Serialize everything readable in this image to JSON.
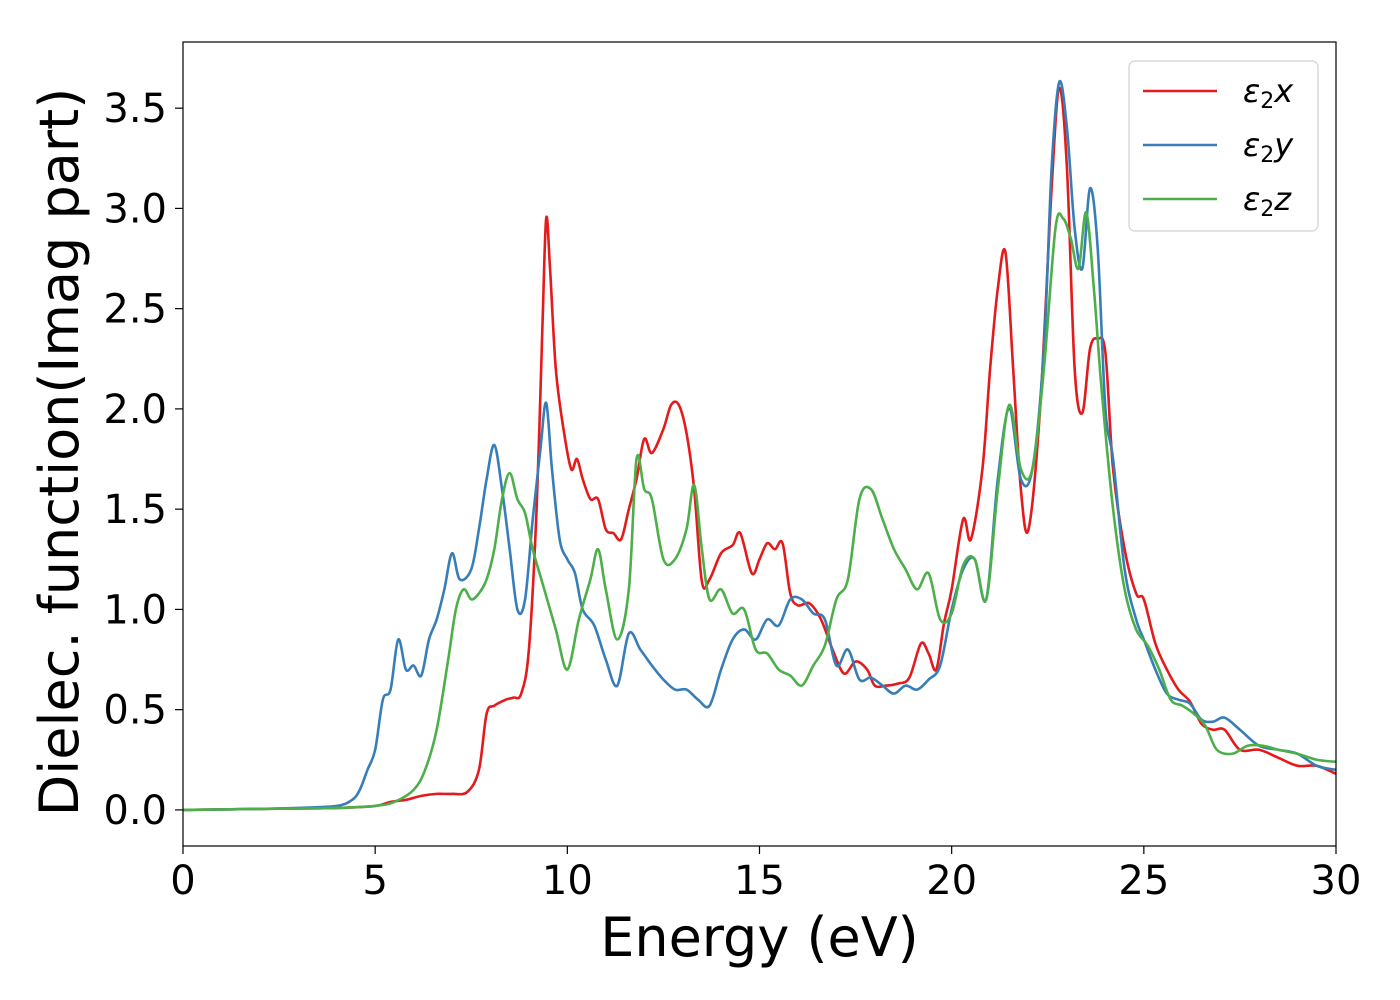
{
  "chart_data": {
    "type": "line",
    "title": "",
    "xlabel": "Energy (eV)",
    "ylabel": "Dielec. function(Imag part)",
    "xlim": [
      0,
      30
    ],
    "ylim": [
      -0.18,
      3.83
    ],
    "xticks": [
      0,
      5,
      10,
      15,
      20,
      25,
      30
    ],
    "xtick_labels": [
      "0",
      "5",
      "10",
      "15",
      "20",
      "25",
      "30"
    ],
    "yticks": [
      0.0,
      0.5,
      1.0,
      1.5,
      2.0,
      2.5,
      3.0,
      3.5
    ],
    "ytick_labels": [
      "0.0",
      "0.5",
      "1.0",
      "1.5",
      "2.0",
      "2.5",
      "3.0",
      "3.5"
    ],
    "grid": false,
    "legend_position": "top-right",
    "series": [
      {
        "name": "ε2x",
        "label_main": "ε",
        "label_sub": "2",
        "label_tail": "x",
        "color": "#e41a1c",
        "points": [
          [
            0,
            0
          ],
          [
            2,
            0.005
          ],
          [
            4,
            0.01
          ],
          [
            5,
            0.02
          ],
          [
            5.4,
            0.04
          ],
          [
            5.8,
            0.05
          ],
          [
            6.2,
            0.07
          ],
          [
            6.6,
            0.08
          ],
          [
            7,
            0.08
          ],
          [
            7.4,
            0.09
          ],
          [
            7.7,
            0.2
          ],
          [
            7.9,
            0.48
          ],
          [
            8.1,
            0.52
          ],
          [
            8.4,
            0.55
          ],
          [
            8.6,
            0.56
          ],
          [
            8.8,
            0.58
          ],
          [
            9.0,
            0.8
          ],
          [
            9.2,
            1.5
          ],
          [
            9.35,
            2.4
          ],
          [
            9.45,
            2.95
          ],
          [
            9.55,
            2.7
          ],
          [
            9.7,
            2.2
          ],
          [
            9.9,
            1.9
          ],
          [
            10.1,
            1.7
          ],
          [
            10.25,
            1.75
          ],
          [
            10.4,
            1.65
          ],
          [
            10.6,
            1.55
          ],
          [
            10.8,
            1.55
          ],
          [
            11.0,
            1.4
          ],
          [
            11.2,
            1.38
          ],
          [
            11.4,
            1.35
          ],
          [
            11.6,
            1.5
          ],
          [
            11.8,
            1.65
          ],
          [
            12.0,
            1.85
          ],
          [
            12.2,
            1.78
          ],
          [
            12.5,
            1.9
          ],
          [
            12.7,
            2.02
          ],
          [
            12.9,
            2.02
          ],
          [
            13.1,
            1.88
          ],
          [
            13.3,
            1.6
          ],
          [
            13.5,
            1.14
          ],
          [
            13.7,
            1.15
          ],
          [
            14.0,
            1.28
          ],
          [
            14.3,
            1.32
          ],
          [
            14.5,
            1.38
          ],
          [
            14.8,
            1.18
          ],
          [
            15.0,
            1.25
          ],
          [
            15.2,
            1.33
          ],
          [
            15.4,
            1.3
          ],
          [
            15.6,
            1.33
          ],
          [
            15.8,
            1.08
          ],
          [
            16.0,
            1.02
          ],
          [
            16.3,
            1.03
          ],
          [
            16.6,
            0.95
          ],
          [
            16.9,
            0.8
          ],
          [
            17.2,
            0.68
          ],
          [
            17.5,
            0.74
          ],
          [
            17.8,
            0.7
          ],
          [
            18.0,
            0.62
          ],
          [
            18.3,
            0.62
          ],
          [
            18.6,
            0.63
          ],
          [
            18.9,
            0.66
          ],
          [
            19.2,
            0.83
          ],
          [
            19.4,
            0.78
          ],
          [
            19.6,
            0.7
          ],
          [
            19.8,
            0.93
          ],
          [
            20.0,
            1.1
          ],
          [
            20.3,
            1.45
          ],
          [
            20.5,
            1.35
          ],
          [
            20.8,
            1.7
          ],
          [
            21.0,
            2.2
          ],
          [
            21.2,
            2.6
          ],
          [
            21.4,
            2.78
          ],
          [
            21.6,
            2.2
          ],
          [
            21.8,
            1.6
          ],
          [
            22.0,
            1.4
          ],
          [
            22.3,
            2.0
          ],
          [
            22.6,
            3.1
          ],
          [
            22.8,
            3.6
          ],
          [
            23.0,
            3.2
          ],
          [
            23.2,
            2.2
          ],
          [
            23.4,
            1.98
          ],
          [
            23.6,
            2.3
          ],
          [
            23.8,
            2.35
          ],
          [
            24.0,
            2.28
          ],
          [
            24.2,
            1.7
          ],
          [
            24.5,
            1.3
          ],
          [
            24.8,
            1.08
          ],
          [
            25.0,
            1.05
          ],
          [
            25.3,
            0.83
          ],
          [
            25.6,
            0.7
          ],
          [
            25.9,
            0.6
          ],
          [
            26.2,
            0.54
          ],
          [
            26.5,
            0.43
          ],
          [
            26.8,
            0.4
          ],
          [
            27.1,
            0.4
          ],
          [
            27.5,
            0.3
          ],
          [
            28,
            0.3
          ],
          [
            28.5,
            0.26
          ],
          [
            29,
            0.22
          ],
          [
            29.5,
            0.22
          ],
          [
            30,
            0.18
          ]
        ]
      },
      {
        "name": "ε2y",
        "label_main": "ε",
        "label_sub": "2",
        "label_tail": "y",
        "color": "#377eb8",
        "points": [
          [
            0,
            0
          ],
          [
            2,
            0.005
          ],
          [
            3,
            0.01
          ],
          [
            4,
            0.02
          ],
          [
            4.4,
            0.05
          ],
          [
            4.6,
            0.1
          ],
          [
            4.8,
            0.2
          ],
          [
            5.0,
            0.3
          ],
          [
            5.2,
            0.55
          ],
          [
            5.4,
            0.6
          ],
          [
            5.6,
            0.85
          ],
          [
            5.8,
            0.7
          ],
          [
            6.0,
            0.72
          ],
          [
            6.2,
            0.67
          ],
          [
            6.4,
            0.85
          ],
          [
            6.6,
            0.95
          ],
          [
            6.8,
            1.1
          ],
          [
            7.0,
            1.28
          ],
          [
            7.2,
            1.15
          ],
          [
            7.5,
            1.2
          ],
          [
            7.7,
            1.4
          ],
          [
            7.9,
            1.65
          ],
          [
            8.1,
            1.82
          ],
          [
            8.3,
            1.6
          ],
          [
            8.5,
            1.3
          ],
          [
            8.7,
            1.0
          ],
          [
            8.9,
            1.05
          ],
          [
            9.1,
            1.45
          ],
          [
            9.3,
            1.8
          ],
          [
            9.45,
            2.03
          ],
          [
            9.6,
            1.7
          ],
          [
            9.8,
            1.35
          ],
          [
            10.0,
            1.25
          ],
          [
            10.2,
            1.18
          ],
          [
            10.4,
            1.0
          ],
          [
            10.7,
            0.92
          ],
          [
            11.0,
            0.75
          ],
          [
            11.3,
            0.62
          ],
          [
            11.6,
            0.88
          ],
          [
            11.9,
            0.8
          ],
          [
            12.2,
            0.72
          ],
          [
            12.5,
            0.65
          ],
          [
            12.8,
            0.6
          ],
          [
            13.1,
            0.6
          ],
          [
            13.4,
            0.55
          ],
          [
            13.7,
            0.52
          ],
          [
            14.0,
            0.7
          ],
          [
            14.3,
            0.85
          ],
          [
            14.6,
            0.9
          ],
          [
            14.9,
            0.85
          ],
          [
            15.2,
            0.95
          ],
          [
            15.5,
            0.92
          ],
          [
            15.8,
            1.05
          ],
          [
            16.1,
            1.05
          ],
          [
            16.4,
            0.98
          ],
          [
            16.7,
            0.95
          ],
          [
            17.0,
            0.72
          ],
          [
            17.3,
            0.8
          ],
          [
            17.6,
            0.65
          ],
          [
            17.9,
            0.66
          ],
          [
            18.2,
            0.62
          ],
          [
            18.5,
            0.58
          ],
          [
            18.8,
            0.62
          ],
          [
            19.1,
            0.6
          ],
          [
            19.4,
            0.65
          ],
          [
            19.7,
            0.72
          ],
          [
            20.0,
            1.0
          ],
          [
            20.3,
            1.2
          ],
          [
            20.6,
            1.25
          ],
          [
            20.9,
            1.05
          ],
          [
            21.2,
            1.65
          ],
          [
            21.5,
            2.0
          ],
          [
            21.8,
            1.65
          ],
          [
            22.1,
            1.7
          ],
          [
            22.4,
            2.3
          ],
          [
            22.6,
            3.2
          ],
          [
            22.8,
            3.63
          ],
          [
            23.0,
            3.4
          ],
          [
            23.2,
            2.9
          ],
          [
            23.4,
            2.7
          ],
          [
            23.6,
            3.1
          ],
          [
            23.8,
            2.8
          ],
          [
            24.0,
            2.0
          ],
          [
            24.2,
            1.75
          ],
          [
            24.5,
            1.2
          ],
          [
            24.8,
            0.95
          ],
          [
            25.0,
            0.85
          ],
          [
            25.3,
            0.7
          ],
          [
            25.6,
            0.58
          ],
          [
            25.9,
            0.55
          ],
          [
            26.2,
            0.53
          ],
          [
            26.5,
            0.45
          ],
          [
            26.8,
            0.44
          ],
          [
            27.1,
            0.46
          ],
          [
            27.5,
            0.4
          ],
          [
            28,
            0.32
          ],
          [
            28.5,
            0.3
          ],
          [
            29,
            0.28
          ],
          [
            29.5,
            0.22
          ],
          [
            30,
            0.2
          ]
        ]
      },
      {
        "name": "ε2z",
        "label_main": "ε",
        "label_sub": "2",
        "label_tail": "z",
        "color": "#4daf4a",
        "points": [
          [
            0,
            0
          ],
          [
            2,
            0.005
          ],
          [
            4,
            0.01
          ],
          [
            5,
            0.02
          ],
          [
            5.5,
            0.04
          ],
          [
            6.0,
            0.1
          ],
          [
            6.3,
            0.2
          ],
          [
            6.6,
            0.4
          ],
          [
            6.9,
            0.75
          ],
          [
            7.1,
            1.0
          ],
          [
            7.3,
            1.1
          ],
          [
            7.5,
            1.05
          ],
          [
            7.7,
            1.08
          ],
          [
            7.9,
            1.15
          ],
          [
            8.1,
            1.3
          ],
          [
            8.3,
            1.55
          ],
          [
            8.5,
            1.68
          ],
          [
            8.7,
            1.55
          ],
          [
            8.9,
            1.48
          ],
          [
            9.1,
            1.3
          ],
          [
            9.4,
            1.1
          ],
          [
            9.7,
            0.9
          ],
          [
            10.0,
            0.7
          ],
          [
            10.3,
            0.95
          ],
          [
            10.6,
            1.15
          ],
          [
            10.8,
            1.3
          ],
          [
            11.0,
            1.1
          ],
          [
            11.3,
            0.85
          ],
          [
            11.6,
            1.1
          ],
          [
            11.8,
            1.75
          ],
          [
            12.0,
            1.6
          ],
          [
            12.2,
            1.55
          ],
          [
            12.5,
            1.25
          ],
          [
            12.8,
            1.25
          ],
          [
            13.1,
            1.4
          ],
          [
            13.3,
            1.62
          ],
          [
            13.5,
            1.3
          ],
          [
            13.7,
            1.05
          ],
          [
            14.0,
            1.1
          ],
          [
            14.3,
            0.98
          ],
          [
            14.6,
            1.0
          ],
          [
            14.9,
            0.8
          ],
          [
            15.2,
            0.78
          ],
          [
            15.5,
            0.7
          ],
          [
            15.8,
            0.67
          ],
          [
            16.1,
            0.62
          ],
          [
            16.4,
            0.72
          ],
          [
            16.7,
            0.82
          ],
          [
            17.0,
            1.05
          ],
          [
            17.3,
            1.15
          ],
          [
            17.6,
            1.55
          ],
          [
            17.9,
            1.6
          ],
          [
            18.2,
            1.45
          ],
          [
            18.5,
            1.3
          ],
          [
            18.8,
            1.2
          ],
          [
            19.1,
            1.1
          ],
          [
            19.4,
            1.18
          ],
          [
            19.7,
            0.95
          ],
          [
            20.0,
            0.98
          ],
          [
            20.3,
            1.22
          ],
          [
            20.6,
            1.25
          ],
          [
            20.9,
            1.05
          ],
          [
            21.2,
            1.6
          ],
          [
            21.5,
            2.02
          ],
          [
            21.8,
            1.7
          ],
          [
            22.1,
            1.7
          ],
          [
            22.4,
            2.2
          ],
          [
            22.7,
            2.9
          ],
          [
            22.9,
            2.95
          ],
          [
            23.1,
            2.85
          ],
          [
            23.3,
            2.7
          ],
          [
            23.5,
            2.98
          ],
          [
            23.7,
            2.6
          ],
          [
            23.9,
            2.1
          ],
          [
            24.2,
            1.5
          ],
          [
            24.5,
            1.1
          ],
          [
            24.8,
            0.9
          ],
          [
            25.1,
            0.82
          ],
          [
            25.4,
            0.7
          ],
          [
            25.7,
            0.55
          ],
          [
            26.0,
            0.52
          ],
          [
            26.3,
            0.48
          ],
          [
            26.6,
            0.42
          ],
          [
            26.9,
            0.3
          ],
          [
            27.3,
            0.28
          ],
          [
            27.7,
            0.32
          ],
          [
            28.1,
            0.32
          ],
          [
            28.5,
            0.3
          ],
          [
            29,
            0.28
          ],
          [
            29.5,
            0.25
          ],
          [
            30,
            0.24
          ]
        ]
      }
    ]
  }
}
